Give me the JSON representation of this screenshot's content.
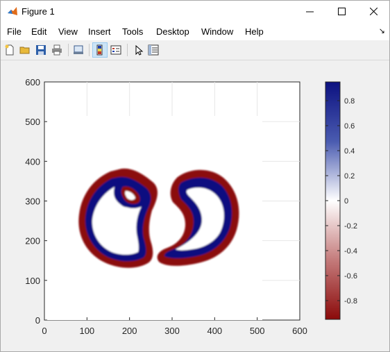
{
  "window": {
    "title": "Figure 1"
  },
  "menu": [
    "File",
    "Edit",
    "View",
    "Insert",
    "Tools",
    "Desktop",
    "Window",
    "Help"
  ],
  "menu_arrow": "↘",
  "toolbar_icons": [
    "new-figure-icon",
    "open-file-icon",
    "save-icon",
    "print-icon",
    "link-plot-icon",
    "insert-colorbar-icon",
    "insert-legend-icon",
    "edit-plot-icon",
    "property-inspector-icon"
  ],
  "colors": {
    "colormap_pos": "#0c1180",
    "colormap_zero": "#ffffff",
    "colormap_neg": "#8b0a0a"
  },
  "chart_data": {
    "type": "heatmap",
    "title": "",
    "xlabel": "",
    "ylabel": "",
    "xlim": [
      0,
      600
    ],
    "ylim": [
      0,
      600
    ],
    "xticks": [
      "0",
      "100",
      "200",
      "300",
      "400",
      "500",
      "600"
    ],
    "yticks": [
      "0",
      "100",
      "200",
      "300",
      "400",
      "500",
      "600"
    ],
    "grid": true,
    "colorbar": {
      "location": "right",
      "range": [
        -0.95,
        0.95
      ],
      "ticks": [
        "0.8",
        "0.6",
        "0.4",
        "0.2",
        "0",
        "-0.2",
        "-0.4",
        "-0.6",
        "-0.8"
      ],
      "colormap": "blue-white-red (diverging)"
    },
    "image_extent": {
      "x": [
        0,
        512
      ],
      "y": [
        0,
        512
      ]
    },
    "description_shapes": "two closed ring-shaped contours (left ~x 80-260, y 150-380; right ~x 260-440, y 140-380), each with a dark-red outer band and dark-blue inner band on a white background"
  }
}
